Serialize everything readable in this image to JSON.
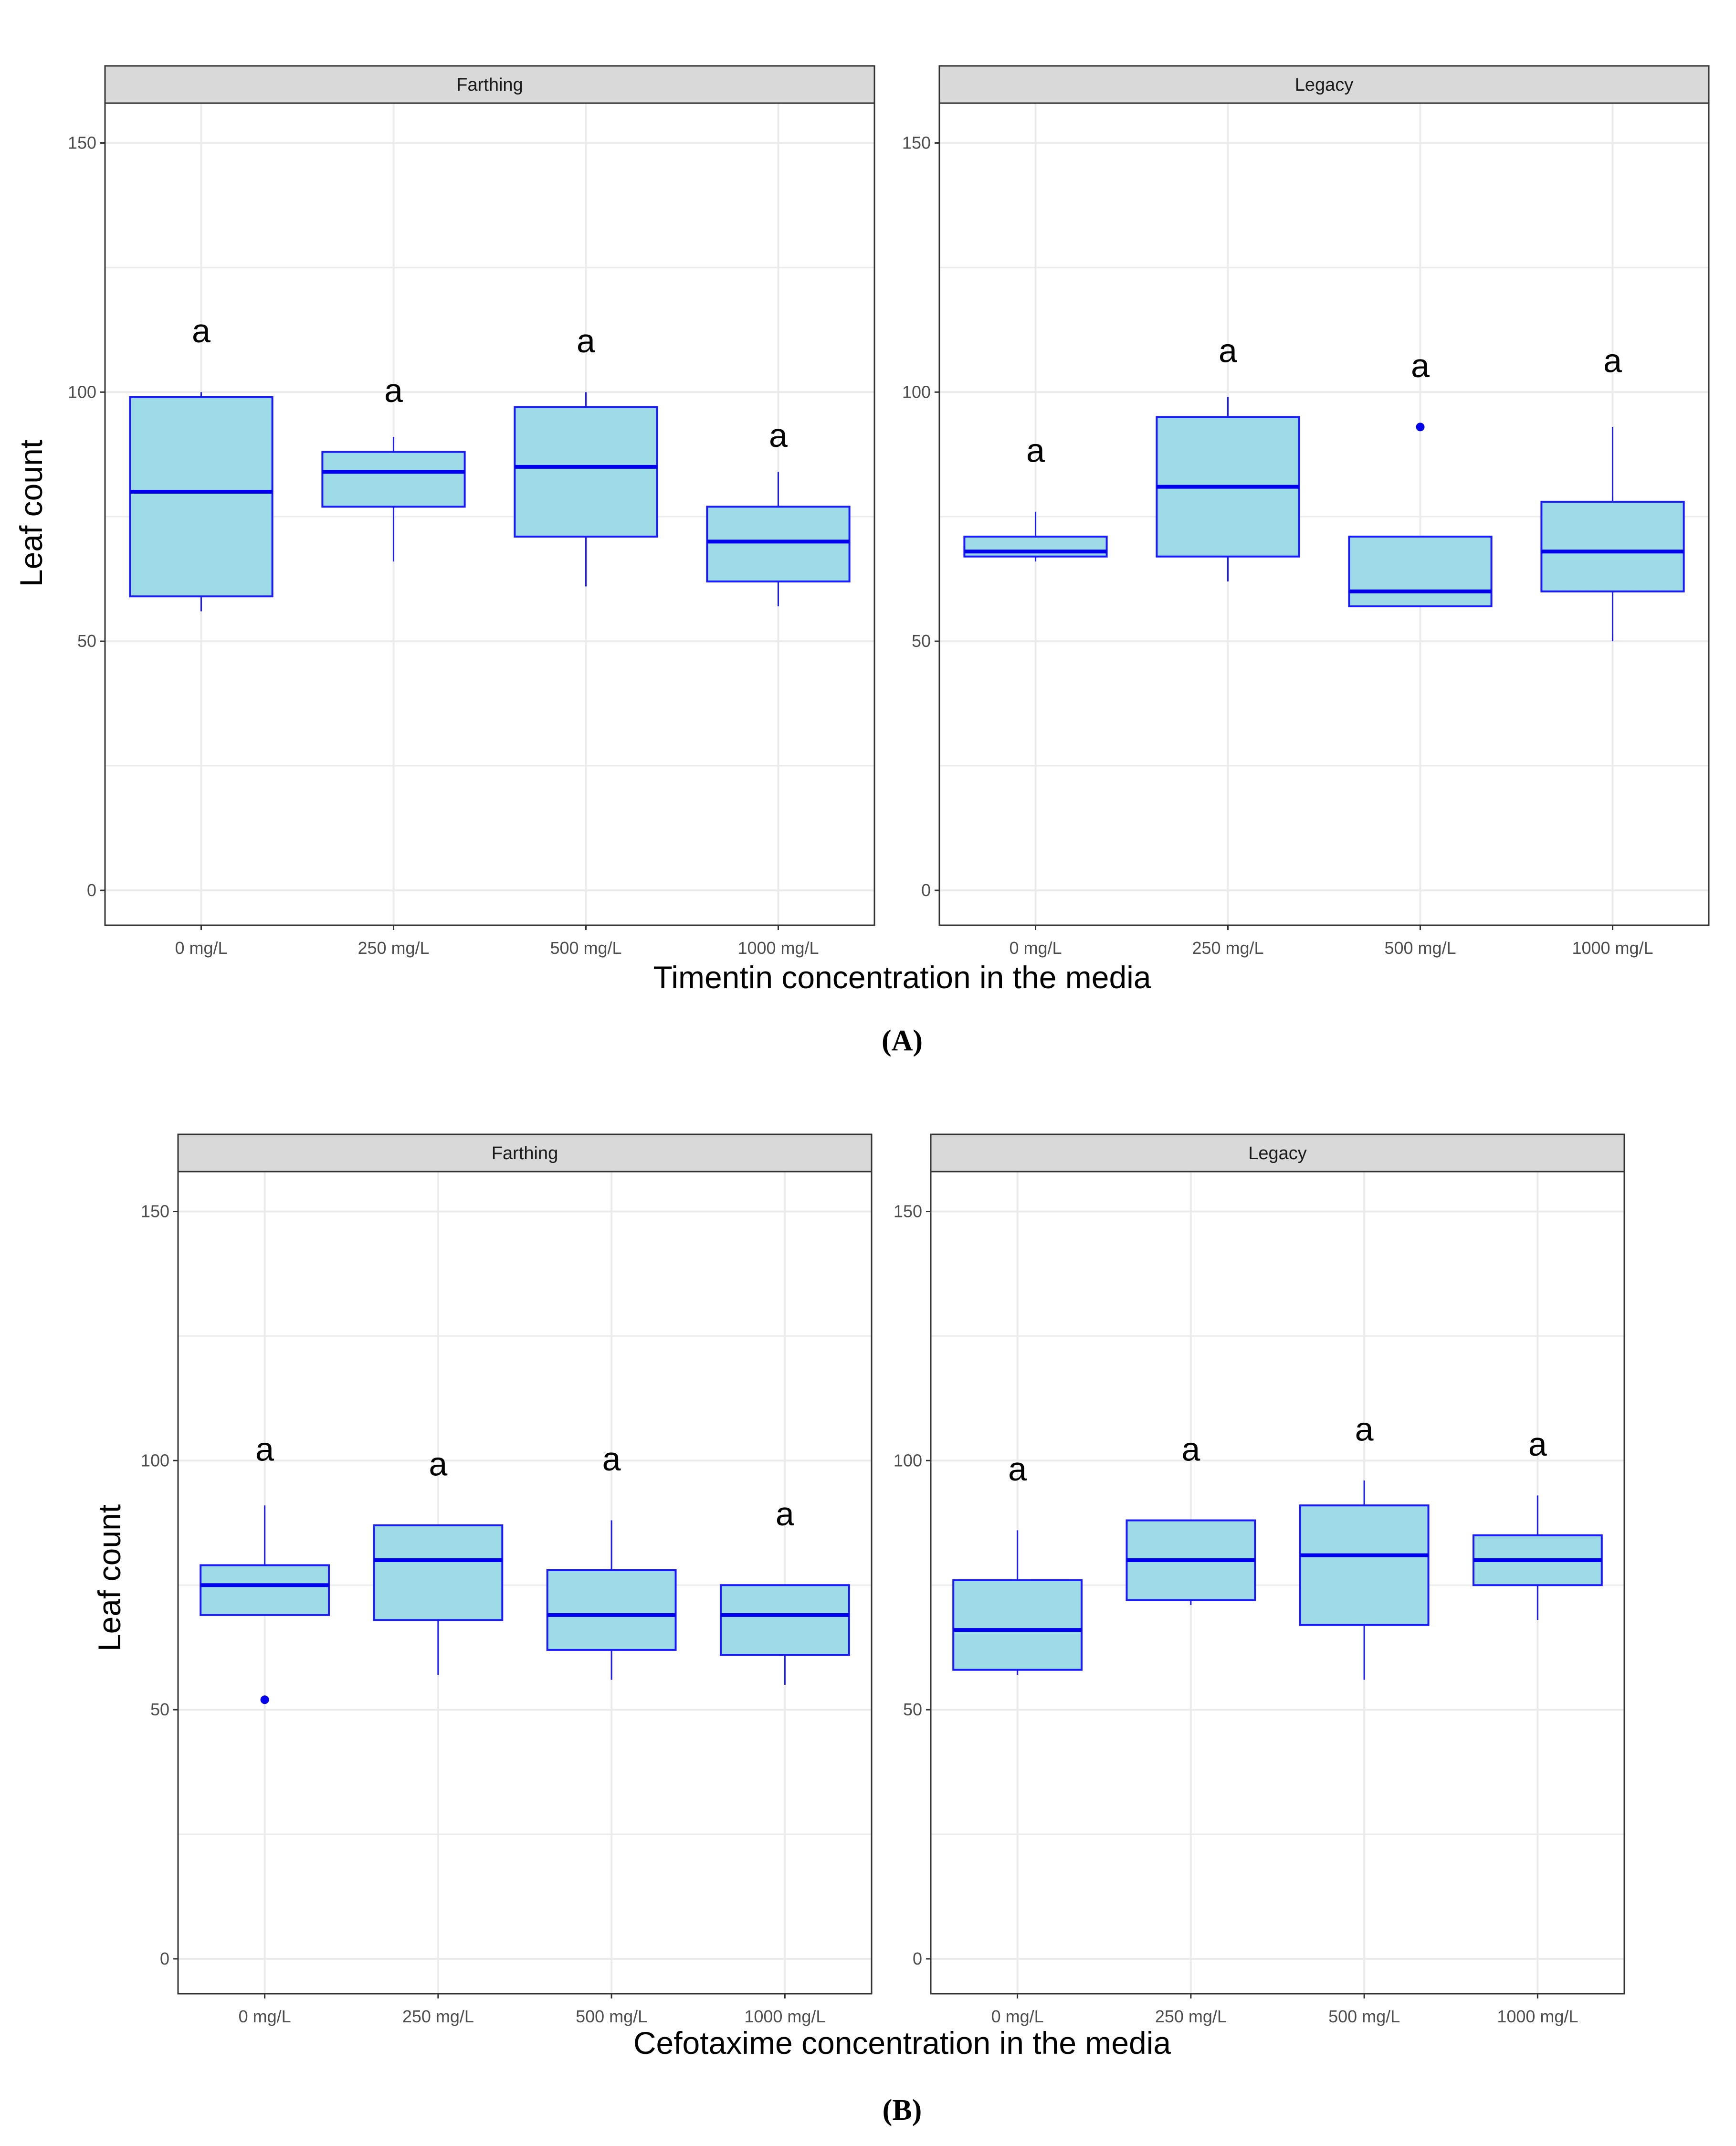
{
  "figure": {
    "panel_labels": [
      "A",
      "B"
    ]
  },
  "colors": {
    "box_fill": "#9ddbe6",
    "box_stroke": "#1a1aff",
    "median": "#0000ee",
    "grid": "#ebebeb",
    "strip_bg": "#d9d9d9",
    "panel_border": "#333333"
  },
  "chart_data": [
    {
      "type": "boxplot",
      "panel": "A",
      "xlabel": "Timentin concentration in the media",
      "ylabel": "Leaf count",
      "ylim": [
        -7,
        158
      ],
      "y_ticks": [
        0,
        50,
        100,
        150
      ],
      "categories": [
        "0 mg/L",
        "250 mg/L",
        "500 mg/L",
        "1000 mg/L"
      ],
      "facets": [
        {
          "name": "Farthing",
          "boxes": [
            {
              "category": "0 mg/L",
              "min": 56,
              "q1": 59,
              "median": 80,
              "q3": 99,
              "max": 100,
              "outliers": [],
              "label": "a",
              "label_y": 110
            },
            {
              "category": "250 mg/L",
              "min": 66,
              "q1": 77,
              "median": 84,
              "q3": 88,
              "max": 91,
              "outliers": [],
              "label": "a",
              "label_y": 98
            },
            {
              "category": "500 mg/L",
              "min": 61,
              "q1": 71,
              "median": 85,
              "q3": 97,
              "max": 100,
              "outliers": [],
              "label": "a",
              "label_y": 108
            },
            {
              "category": "1000 mg/L",
              "min": 57,
              "q1": 62,
              "median": 70,
              "q3": 77,
              "max": 84,
              "outliers": [],
              "label": "a",
              "label_y": 89
            }
          ]
        },
        {
          "name": "Legacy",
          "boxes": [
            {
              "category": "0 mg/L",
              "min": 66,
              "q1": 67,
              "median": 68,
              "q3": 71,
              "max": 76,
              "outliers": [],
              "label": "a",
              "label_y": 86
            },
            {
              "category": "250 mg/L",
              "min": 62,
              "q1": 67,
              "median": 81,
              "q3": 95,
              "max": 99,
              "outliers": [],
              "label": "a",
              "label_y": 106
            },
            {
              "category": "500 mg/L",
              "min": 57,
              "q1": 57,
              "median": 60,
              "q3": 71,
              "max": 71,
              "outliers": [
                93
              ],
              "label": "a",
              "label_y": 103
            },
            {
              "category": "1000 mg/L",
              "min": 50,
              "q1": 60,
              "median": 68,
              "q3": 78,
              "max": 93,
              "outliers": [],
              "label": "a",
              "label_y": 104
            }
          ]
        }
      ]
    },
    {
      "type": "boxplot",
      "panel": "B",
      "xlabel": "Cefotaxime concentration in the media",
      "ylabel": "Leaf count",
      "ylim": [
        -7,
        158
      ],
      "y_ticks": [
        0,
        50,
        100,
        150
      ],
      "categories": [
        "0 mg/L",
        "250 mg/L",
        "500 mg/L",
        "1000 mg/L"
      ],
      "facets": [
        {
          "name": "Farthing",
          "boxes": [
            {
              "category": "0 mg/L",
              "min": 69,
              "q1": 69,
              "median": 75,
              "q3": 79,
              "max": 91,
              "outliers": [
                52
              ],
              "label": "a",
              "label_y": 100
            },
            {
              "category": "250 mg/L",
              "min": 57,
              "q1": 68,
              "median": 80,
              "q3": 87,
              "max": 87,
              "outliers": [],
              "label": "a",
              "label_y": 97
            },
            {
              "category": "500 mg/L",
              "min": 56,
              "q1": 62,
              "median": 69,
              "q3": 78,
              "max": 88,
              "outliers": [],
              "label": "a",
              "label_y": 98
            },
            {
              "category": "1000 mg/L",
              "min": 55,
              "q1": 61,
              "median": 69,
              "q3": 75,
              "max": 75,
              "outliers": [],
              "label": "a",
              "label_y": 87
            }
          ]
        },
        {
          "name": "Legacy",
          "boxes": [
            {
              "category": "0 mg/L",
              "min": 57,
              "q1": 58,
              "median": 66,
              "q3": 76,
              "max": 86,
              "outliers": [],
              "label": "a",
              "label_y": 96
            },
            {
              "category": "250 mg/L",
              "min": 71,
              "q1": 72,
              "median": 80,
              "q3": 88,
              "max": 88,
              "outliers": [],
              "label": "a",
              "label_y": 100
            },
            {
              "category": "500 mg/L",
              "min": 56,
              "q1": 67,
              "median": 81,
              "q3": 91,
              "max": 96,
              "outliers": [],
              "label": "a",
              "label_y": 104
            },
            {
              "category": "1000 mg/L",
              "min": 68,
              "q1": 75,
              "median": 80,
              "q3": 85,
              "max": 93,
              "outliers": [],
              "label": "a",
              "label_y": 101
            }
          ]
        }
      ]
    }
  ]
}
